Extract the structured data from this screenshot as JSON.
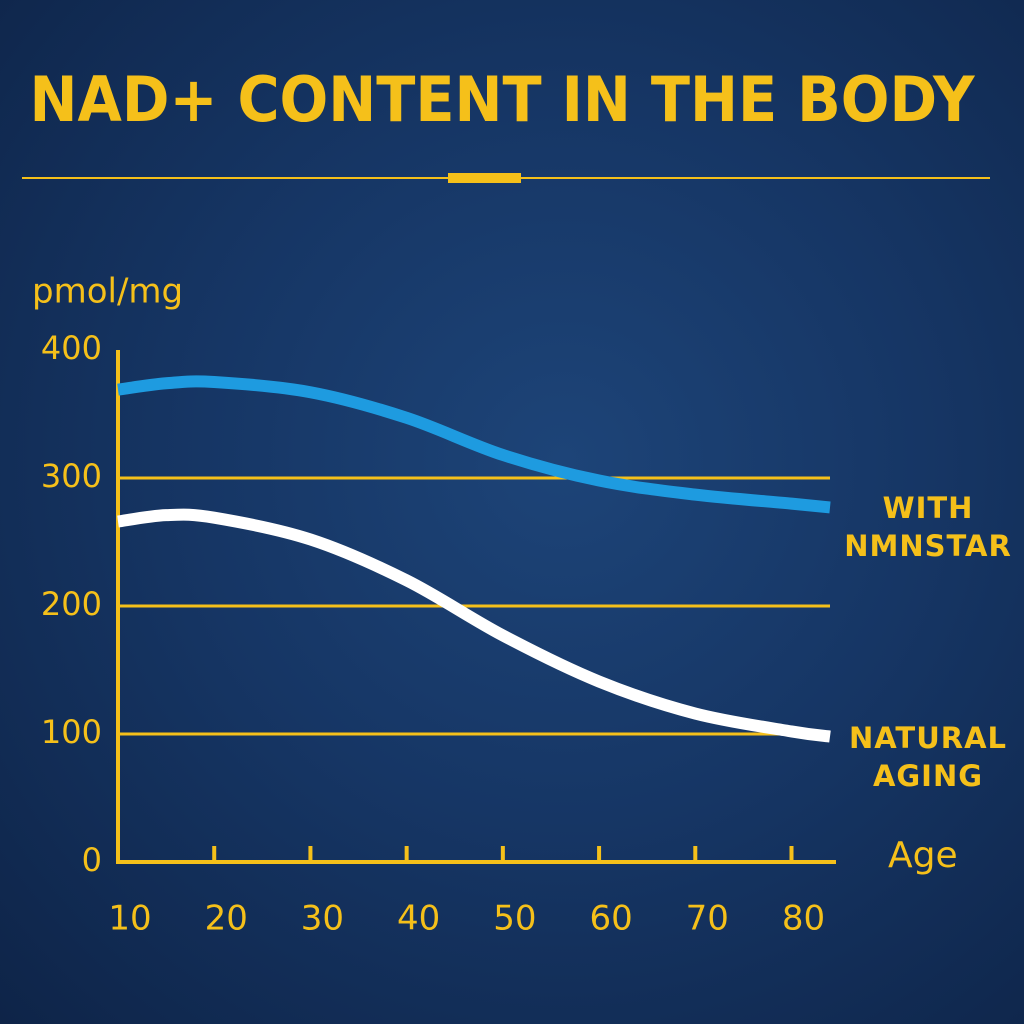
{
  "chart_data": {
    "type": "line",
    "title": "NAD+ CONTENT IN THE BODY",
    "ylabel": "pmol/mg",
    "xlabel": "Age",
    "x": [
      10,
      15,
      20,
      30,
      40,
      50,
      60,
      70,
      80,
      84
    ],
    "series": [
      {
        "name": "WITH NMNSTAR",
        "color": "#1e9be0",
        "values": [
          369,
          374,
          375,
          367,
          347,
          318,
          298,
          287,
          280,
          277
        ]
      },
      {
        "name": "NATURAL AGING",
        "color": "#ffffff",
        "values": [
          266,
          271,
          269,
          252,
          220,
          177,
          141,
          116,
          102,
          98
        ]
      }
    ],
    "xlim": [
      10,
      84
    ],
    "ylim": [
      0,
      400
    ],
    "xticks": [
      10,
      20,
      30,
      40,
      50,
      60,
      70,
      80
    ],
    "yticks": [
      0,
      100,
      200,
      300,
      400
    ],
    "grid": true,
    "axis_color": "#f5c01a"
  }
}
